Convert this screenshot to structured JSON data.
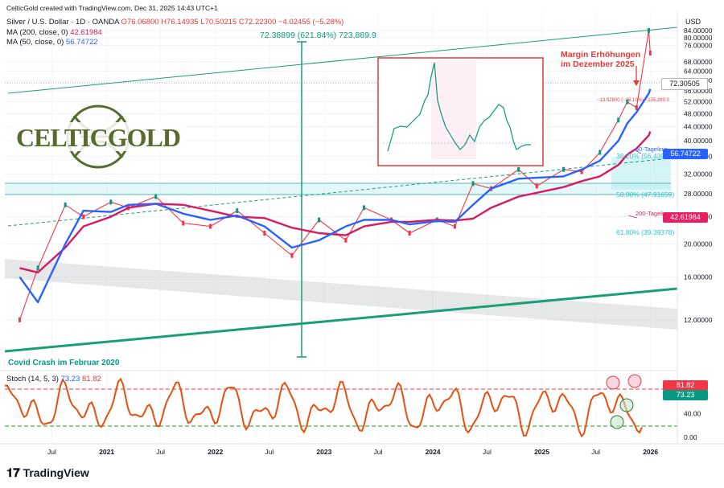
{
  "credit": "CelticGold created with TradingView.com, Dec 31, 2025 14:43 UTC+1",
  "header": {
    "symbol": "Silver / U.S. Dollar · 1D · OANDA",
    "open": "O76.06800",
    "high": "H76.14935",
    "low": "L70.50215",
    "close": "C72.22300",
    "change": "−4.02455 (−5.28%)",
    "ma200_label": "MA (200, close, 0)",
    "ma200_value": "42.61984",
    "ma50_label": "MA (50, close, 0)",
    "ma50_value": "56.74722",
    "stoch_label": "Stoch (14, 5, 3)",
    "stoch_k": "73.23",
    "stoch_d": "81.82"
  },
  "logo_text": "CELTICGOLD",
  "brand": "TradingView",
  "currency": "USD",
  "annotations": {
    "measure": "72.38899 (621.84%) 723,889.9",
    "margin": "Margin Erhöhungen\nim Dezember 2025",
    "drop": "−13.52800 (−16.10%) −135,280.0",
    "covid": "Covid Crash im Februar 2020",
    "ma50_tag": "50-Tagelinie",
    "ma200_tag": "200-Tagelinie",
    "fib382": "38.20% (56.43939)",
    "fib50": "50.00% (47.91659)",
    "fib618": "61.80% (39.39378)"
  },
  "price_tags": {
    "current": "72.30505",
    "ma50": "56.74722",
    "ma200": "42.61984",
    "stoch_d": "81.82",
    "stoch_k": "73.23"
  },
  "colors": {
    "candle_up": "#089981",
    "candle_down": "#f23645",
    "ma200": "#d81b60",
    "ma50": "#2962ff",
    "stoch_k": "#e6500f",
    "channel": "#1a9e77",
    "fib_zone": "#b2ebf2"
  },
  "chart_data": {
    "type": "line",
    "title": "Silver / U.S. Dollar · 1D · OANDA",
    "xlabel": "",
    "ylabel": "USD",
    "x_tick_labels": [
      "Jul",
      "2021",
      "Jul",
      "2022",
      "Jul",
      "2023",
      "Jul",
      "2024",
      "Jul",
      "2025",
      "Jul",
      "2026"
    ],
    "y_tick_labels": [
      "12.00000",
      "16.00000",
      "20.00000",
      "24.00000",
      "28.00000",
      "32.00000",
      "36.00000",
      "40.00000",
      "44.00000",
      "48.00000",
      "52.00000",
      "56.00000",
      "60.00000",
      "64.00000",
      "68.00000",
      "76.00000",
      "80.00000",
      "84.00000"
    ],
    "ylim": [
      9.5,
      84
    ],
    "x": [
      "2020-03",
      "2020-05",
      "2020-08",
      "2020-10",
      "2021-01",
      "2021-03",
      "2021-06",
      "2021-09",
      "2021-12",
      "2022-03",
      "2022-06",
      "2022-09",
      "2022-12",
      "2023-03",
      "2023-05",
      "2023-08",
      "2023-10",
      "2024-01",
      "2024-03",
      "2024-05",
      "2024-07",
      "2024-10",
      "2024-12",
      "2025-03",
      "2025-05",
      "2025-07",
      "2025-09",
      "2025-10",
      "2025-11",
      "2025-12-26",
      "2025-12-31"
    ],
    "series": [
      {
        "name": "Silver / U.S. Dollar",
        "values": [
          12,
          17,
          26,
          24,
          26.5,
          25.5,
          27.5,
          23,
          22.5,
          25,
          21.5,
          18.5,
          23.5,
          20.5,
          25.5,
          23.5,
          21.5,
          23.5,
          22.5,
          30,
          29,
          33,
          29.5,
          33,
          32.5,
          37,
          46,
          52,
          50,
          84,
          72.2
        ]
      },
      {
        "name": "MA (200, close, 0)",
        "values": [
          17,
          16.5,
          19.5,
          22.5,
          24,
          25.5,
          26.2,
          26,
          25,
          24,
          23.8,
          22.3,
          21.5,
          21.2,
          22.5,
          23.2,
          23.2,
          23.5,
          23.4,
          23.7,
          25.5,
          27.5,
          28.2,
          29.3,
          30.5,
          31.5,
          34,
          36.5,
          38,
          41.5,
          42.6
        ]
      },
      {
        "name": "MA (50, close, 0)",
        "values": [
          16,
          13.5,
          20,
          25,
          24.8,
          26,
          26.2,
          24.5,
          23.5,
          24.2,
          22.5,
          19.5,
          20.5,
          22.5,
          23.5,
          23.5,
          22.8,
          23.3,
          23.2,
          26,
          29,
          31,
          31.2,
          31.5,
          33,
          35,
          40,
          45,
          48.5,
          55,
          56.7
        ]
      }
    ],
    "stoch": {
      "y_tick_labels": [
        "0.00",
        "40.00"
      ],
      "levels": [
        80,
        20
      ]
    },
    "grid": true
  }
}
